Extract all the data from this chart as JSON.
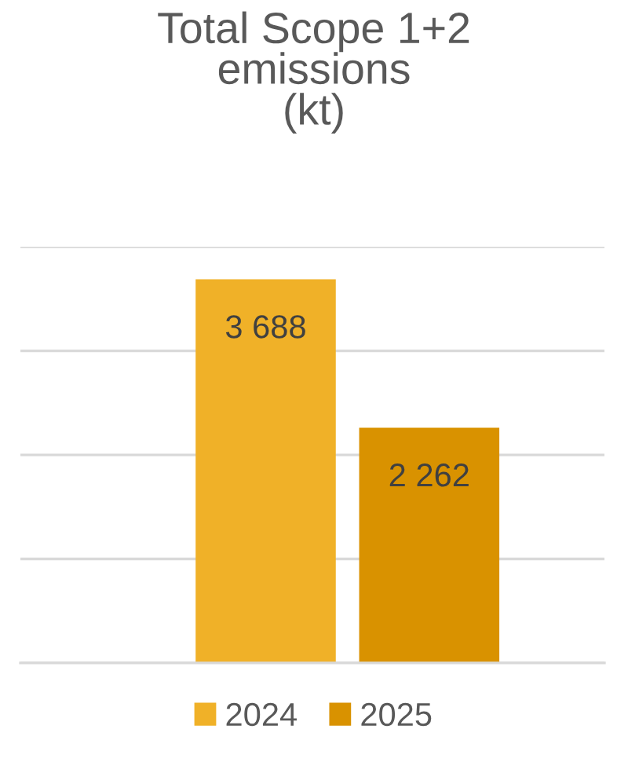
{
  "chart_data": {
    "type": "bar",
    "title": "Total Scope 1+2\nemissions\n(kt)",
    "categories": [
      null
    ],
    "series": [
      {
        "name": "2024",
        "color": "#f0b128",
        "values": [
          3688
        ],
        "value_labels": [
          "3 688"
        ]
      },
      {
        "name": "2025",
        "color": "#d99200",
        "values": [
          2262
        ],
        "value_labels": [
          "2 262"
        ]
      }
    ],
    "ylim": [
      0,
      4000
    ],
    "yticks": [
      {
        "value": 0,
        "label": null
      },
      {
        "value": 1000,
        "label": null
      },
      {
        "value": 2000,
        "label": null
      },
      {
        "value": 3000,
        "label": null
      },
      {
        "value": 4000,
        "label": null
      }
    ],
    "grid": "y",
    "legend": "bottom"
  }
}
